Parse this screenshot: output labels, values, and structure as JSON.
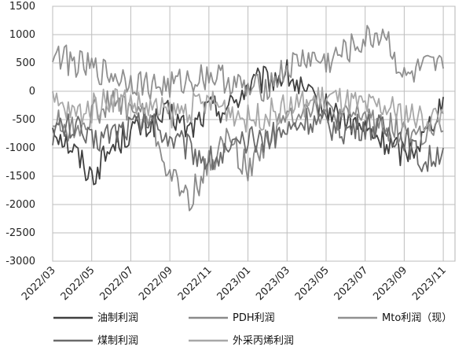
{
  "chart_data": {
    "type": "line",
    "title": "",
    "xlabel": "",
    "ylabel": "",
    "ylim": [
      -3000,
      1500
    ],
    "yticks": [
      -3000,
      -2500,
      -2000,
      -1500,
      -1000,
      -500,
      0,
      500,
      1000,
      1500
    ],
    "xticks": [
      "2022/03",
      "2022/05",
      "2022/07",
      "2022/09",
      "2022/11",
      "2023/01",
      "2023/03",
      "2023/05",
      "2023/07",
      "2023/09",
      "2023/11"
    ],
    "grid": true,
    "legend_position": "bottom",
    "series": [
      {
        "name": "油制利润",
        "color": "#404040",
        "x": [
          "2022/03",
          "2022/04",
          "2022/05",
          "2022/06",
          "2022/07",
          "2022/08",
          "2022/09",
          "2022/10",
          "2022/11",
          "2022/12",
          "2023/01",
          "2023/02",
          "2023/03",
          "2023/04",
          "2023/05",
          "2023/06",
          "2023/07",
          "2023/08",
          "2023/09",
          "2023/10",
          "2023/11"
        ],
        "y": [
          -600,
          -1000,
          -1500,
          -1000,
          -700,
          -600,
          -400,
          -700,
          -300,
          -300,
          100,
          200,
          300,
          -100,
          -300,
          -500,
          -700,
          -900,
          -1100,
          -800,
          -100
        ]
      },
      {
        "name": "PDH利润",
        "color": "#8a8a8a",
        "x": [
          "2022/03",
          "2022/04",
          "2022/05",
          "2022/06",
          "2022/07",
          "2022/08",
          "2022/09",
          "2022/10",
          "2022/11",
          "2022/12",
          "2023/01",
          "2023/02",
          "2023/03",
          "2023/04",
          "2023/05",
          "2023/06",
          "2023/07",
          "2023/08",
          "2023/09",
          "2023/10",
          "2023/11"
        ],
        "y": [
          -500,
          -700,
          -400,
          -200,
          -300,
          -500,
          -1500,
          -1900,
          -1300,
          -800,
          -1400,
          -800,
          -500,
          -200,
          -400,
          -500,
          -400,
          -600,
          -700,
          -800,
          -700
        ]
      },
      {
        "name": "Mto利润（现）",
        "color": "#909090",
        "x": [
          "2022/03",
          "2022/04",
          "2022/05",
          "2022/06",
          "2022/07",
          "2022/08",
          "2022/09",
          "2022/10",
          "2022/11",
          "2022/12",
          "2023/01",
          "2023/02",
          "2023/03",
          "2023/04",
          "2023/05",
          "2023/06",
          "2023/07",
          "2023/08",
          "2023/09",
          "2023/10",
          "2023/11"
        ],
        "y": [
          700,
          500,
          400,
          300,
          200,
          100,
          100,
          200,
          300,
          200,
          0,
          100,
          400,
          600,
          500,
          700,
          900,
          1050,
          200,
          400,
          400
        ]
      },
      {
        "name": "煤制利润",
        "color": "#6b6b6b",
        "x": [
          "2022/03",
          "2022/04",
          "2022/05",
          "2022/06",
          "2022/07",
          "2022/08",
          "2022/09",
          "2022/10",
          "2022/11",
          "2022/12",
          "2023/01",
          "2023/02",
          "2023/03",
          "2023/04",
          "2023/05",
          "2023/06",
          "2023/07",
          "2023/08",
          "2023/09",
          "2023/10",
          "2023/11"
        ],
        "y": [
          -700,
          -600,
          -900,
          -700,
          -600,
          -500,
          -800,
          -1000,
          -1200,
          -1100,
          -900,
          -800,
          -700,
          -500,
          -600,
          -700,
          -600,
          -700,
          -800,
          -1300,
          -1000
        ]
      },
      {
        "name": "外采丙烯利润",
        "color": "#a8a8a8",
        "x": [
          "2022/03",
          "2022/04",
          "2022/05",
          "2022/06",
          "2022/07",
          "2022/08",
          "2022/09",
          "2022/10",
          "2022/11",
          "2022/12",
          "2023/01",
          "2023/02",
          "2023/03",
          "2023/04",
          "2023/05",
          "2023/06",
          "2023/07",
          "2023/08",
          "2023/09",
          "2023/10",
          "2023/11"
        ],
        "y": [
          -200,
          -400,
          -300,
          -100,
          -200,
          -300,
          -400,
          -300,
          -200,
          -300,
          -500,
          -400,
          -300,
          -200,
          -100,
          -200,
          -300,
          -300,
          -400,
          -500,
          -400
        ]
      }
    ]
  },
  "legend_rows": [
    [
      {
        "label": "油制利润",
        "color": "#404040"
      },
      {
        "label": "PDH利润",
        "color": "#8a8a8a"
      },
      {
        "label": "Mto利润（现）",
        "color": "#909090"
      }
    ],
    [
      {
        "label": "煤制利润",
        "color": "#6b6b6b"
      },
      {
        "label": "外采丙烯利润",
        "color": "#a8a8a8"
      }
    ]
  ]
}
